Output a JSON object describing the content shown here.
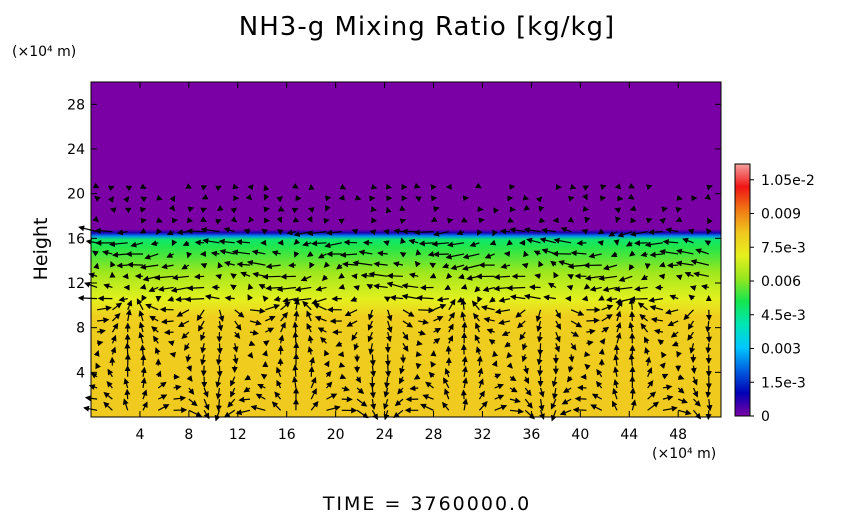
{
  "chart_data": {
    "type": "heatmap",
    "title": "NH3-g Mixing Ratio [kg/kg]",
    "ylabel": "Height",
    "y_unit": "(×10⁴ m)",
    "x_unit": "(×10⁴ m)",
    "time_label": "TIME = 3760000.0",
    "xlim": [
      0,
      51.5
    ],
    "ylim": [
      0,
      30
    ],
    "x_ticks": [
      4,
      8,
      12,
      16,
      20,
      24,
      28,
      32,
      36,
      40,
      44,
      48
    ],
    "y_ticks": [
      4,
      8,
      12,
      16,
      20,
      24,
      28
    ],
    "colorbar": {
      "min": 0,
      "max": 0.0112,
      "tick_values": [
        0,
        0.0015,
        0.003,
        0.0045,
        0.006,
        0.0075,
        0.009,
        0.0105
      ],
      "tick_labels": [
        "0",
        "1.5e-3",
        "0.003",
        "4.5e-3",
        "0.006",
        "7.5e-3",
        "0.009",
        "1.05e-2"
      ]
    },
    "vertical_profile": [
      {
        "height": 0,
        "value": 0.0081
      },
      {
        "height": 9,
        "value": 0.008
      },
      {
        "height": 10.5,
        "value": 0.0071
      },
      {
        "height": 12,
        "value": 0.0066
      },
      {
        "height": 13,
        "value": 0.0062
      },
      {
        "height": 14,
        "value": 0.0057
      },
      {
        "height": 15.2,
        "value": 0.0052
      },
      {
        "height": 15.9,
        "value": 0.0048
      },
      {
        "height": 16.2,
        "value": 0.0025
      },
      {
        "height": 16.5,
        "value": 0.0008
      },
      {
        "height": 16.8,
        "value": 0.0
      },
      {
        "height": 30,
        "value": 0.0
      }
    ],
    "overlay": "wind vectors (arrows)"
  },
  "colors": {
    "scale": [
      "#7a00a6",
      "#0000b4",
      "#0060e0",
      "#00c8ff",
      "#00e6b4",
      "#14e650",
      "#96e61e",
      "#e6f01e",
      "#f0c81e",
      "#f07814",
      "#f01414",
      "#f5a0a0"
    ],
    "axes": "#000000",
    "background": "#ffffff"
  }
}
